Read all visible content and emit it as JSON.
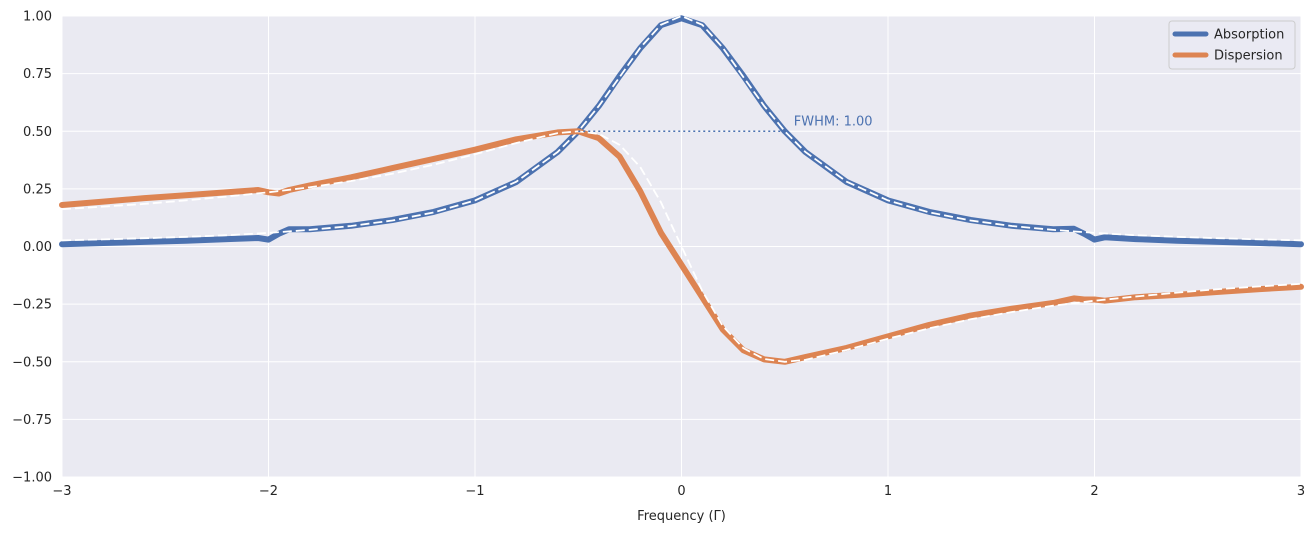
{
  "chart_data": {
    "type": "line",
    "title": "",
    "xlabel": "Frequency (Γ)",
    "ylabel": "",
    "xlim": [
      -3,
      3
    ],
    "ylim": [
      -1,
      1
    ],
    "x_ticks": [
      -3,
      -2,
      -1,
      0,
      1,
      2,
      3
    ],
    "x_tick_labels": [
      "−3",
      "−2",
      "−1",
      "0",
      "1",
      "2",
      "3"
    ],
    "y_ticks": [
      -1,
      -0.75,
      -0.5,
      -0.25,
      0,
      0.25,
      0.5,
      0.75,
      1
    ],
    "y_tick_labels": [
      "−1.00",
      "−0.75",
      "−0.50",
      "−0.25",
      "0.00",
      "0.25",
      "0.50",
      "0.75",
      "1.00"
    ],
    "grid": true,
    "legend_position": "top-right",
    "annotation": {
      "text": "FWHM: 1.00",
      "color": "#4c72b0",
      "x_from": -0.5,
      "x_to": 0.5,
      "y": 0.5
    },
    "series": [
      {
        "name": "Absorption",
        "color": "#4c72b0",
        "x": [
          -3,
          -2.8,
          -2.6,
          -2.4,
          -2.2,
          -2.05,
          -2.0,
          -1.95,
          -1.9,
          -1.8,
          -1.6,
          -1.4,
          -1.2,
          -1.0,
          -0.8,
          -0.6,
          -0.5,
          -0.4,
          -0.3,
          -0.2,
          -0.1,
          0,
          0.1,
          0.2,
          0.3,
          0.4,
          0.5,
          0.6,
          0.8,
          1.0,
          1.2,
          1.4,
          1.6,
          1.8,
          1.9,
          1.95,
          2.0,
          2.05,
          2.2,
          2.4,
          2.6,
          2.8,
          3.0
        ],
        "values": [
          0.01,
          0.015,
          0.02,
          0.025,
          0.032,
          0.037,
          0.03,
          0.055,
          0.075,
          0.075,
          0.09,
          0.115,
          0.15,
          0.2,
          0.28,
          0.41,
          0.5,
          0.61,
          0.74,
          0.86,
          0.96,
          0.99,
          0.96,
          0.86,
          0.74,
          0.61,
          0.5,
          0.41,
          0.28,
          0.2,
          0.15,
          0.115,
          0.09,
          0.075,
          0.077,
          0.055,
          0.03,
          0.04,
          0.032,
          0.025,
          0.02,
          0.015,
          0.01
        ],
        "ideal_x": [
          -3,
          -2.8,
          -2.6,
          -2.4,
          -2.2,
          -2.0,
          -1.8,
          -1.6,
          -1.4,
          -1.2,
          -1.0,
          -0.8,
          -0.6,
          -0.5,
          -0.4,
          -0.3,
          -0.2,
          -0.1,
          0,
          0.1,
          0.2,
          0.3,
          0.4,
          0.5,
          0.6,
          0.8,
          1.0,
          1.2,
          1.4,
          1.6,
          1.8,
          2.0,
          2.2,
          2.4,
          2.6,
          2.8,
          3.0
        ],
        "ideal_values": [
          0.027,
          0.031,
          0.036,
          0.042,
          0.049,
          0.059,
          0.072,
          0.089,
          0.113,
          0.148,
          0.2,
          0.281,
          0.41,
          0.5,
          0.61,
          0.735,
          0.862,
          0.962,
          1.0,
          0.962,
          0.862,
          0.735,
          0.61,
          0.5,
          0.41,
          0.281,
          0.2,
          0.148,
          0.113,
          0.089,
          0.072,
          0.059,
          0.049,
          0.042,
          0.036,
          0.031,
          0.027
        ]
      },
      {
        "name": "Dispersion",
        "color": "#dd8452",
        "x": [
          -3,
          -2.8,
          -2.6,
          -2.4,
          -2.2,
          -2.05,
          -2.0,
          -1.95,
          -1.9,
          -1.8,
          -1.6,
          -1.4,
          -1.2,
          -1.0,
          -0.8,
          -0.6,
          -0.5,
          -0.4,
          -0.3,
          -0.2,
          -0.1,
          0,
          0.1,
          0.2,
          0.3,
          0.4,
          0.5,
          0.6,
          0.8,
          1.0,
          1.2,
          1.4,
          1.6,
          1.8,
          1.9,
          1.95,
          2.0,
          2.05,
          2.2,
          2.4,
          2.6,
          2.8,
          3.0
        ],
        "values": [
          0.18,
          0.195,
          0.21,
          0.222,
          0.235,
          0.245,
          0.235,
          0.23,
          0.245,
          0.265,
          0.3,
          0.34,
          0.38,
          0.42,
          0.465,
          0.495,
          0.5,
          0.47,
          0.39,
          0.24,
          0.06,
          -0.08,
          -0.22,
          -0.36,
          -0.45,
          -0.49,
          -0.5,
          -0.48,
          -0.44,
          -0.39,
          -0.34,
          -0.3,
          -0.27,
          -0.245,
          -0.225,
          -0.23,
          -0.23,
          -0.235,
          -0.22,
          -0.21,
          -0.197,
          -0.185,
          -0.175
        ],
        "ideal_x": [
          -3,
          -2.8,
          -2.6,
          -2.4,
          -2.2,
          -2.0,
          -1.8,
          -1.6,
          -1.4,
          -1.2,
          -1.0,
          -0.8,
          -0.6,
          -0.5,
          -0.4,
          -0.3,
          -0.2,
          -0.1,
          0,
          0.1,
          0.2,
          0.3,
          0.4,
          0.5,
          0.6,
          0.8,
          1.0,
          1.2,
          1.4,
          1.6,
          1.8,
          2.0,
          2.2,
          2.4,
          2.6,
          2.8,
          3.0
        ],
        "ideal_values": [
          0.162,
          0.173,
          0.185,
          0.2,
          0.217,
          0.235,
          0.257,
          0.284,
          0.316,
          0.355,
          0.4,
          0.449,
          0.492,
          0.5,
          0.488,
          0.441,
          0.345,
          0.192,
          0.0,
          -0.192,
          -0.345,
          -0.441,
          -0.488,
          -0.5,
          -0.492,
          -0.449,
          -0.4,
          -0.355,
          -0.316,
          -0.284,
          -0.257,
          -0.235,
          -0.217,
          -0.2,
          -0.185,
          -0.173,
          -0.162
        ]
      }
    ]
  }
}
